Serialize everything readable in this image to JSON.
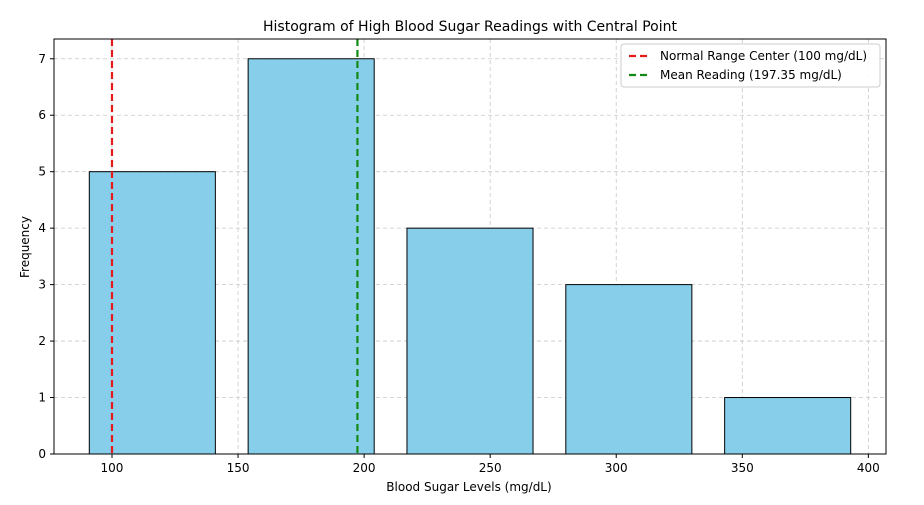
{
  "chart_data": {
    "type": "bar",
    "title": "Histogram of High Blood Sugar Readings with Central Point",
    "xlabel": "Blood Sugar Levels (mg/dL)",
    "ylabel": "Frequency",
    "xlim": [
      77,
      407
    ],
    "ylim": [
      0,
      7.35
    ],
    "xticks": [
      100,
      150,
      200,
      250,
      300,
      350,
      400
    ],
    "yticks": [
      0,
      1,
      2,
      3,
      4,
      5,
      6,
      7
    ],
    "grid": true,
    "bins": [
      {
        "start": 91,
        "end": 141,
        "count": 5
      },
      {
        "start": 154,
        "end": 204,
        "count": 7
      },
      {
        "start": 217,
        "end": 267,
        "count": 4
      },
      {
        "start": 280,
        "end": 330,
        "count": 3
      },
      {
        "start": 343,
        "end": 393,
        "count": 1
      }
    ],
    "vlines": [
      {
        "name": "Normal Range Center (100 mg/dL)",
        "x": 100,
        "color": "#e41a1c",
        "style": "dashed"
      },
      {
        "name": "Mean Reading (197.35 mg/dL)",
        "x": 197.35,
        "color": "#138a13",
        "style": "dashed"
      }
    ],
    "legend_position": "top-right",
    "bar_color": "#87ceeb",
    "bar_edge_color": "#000000"
  }
}
